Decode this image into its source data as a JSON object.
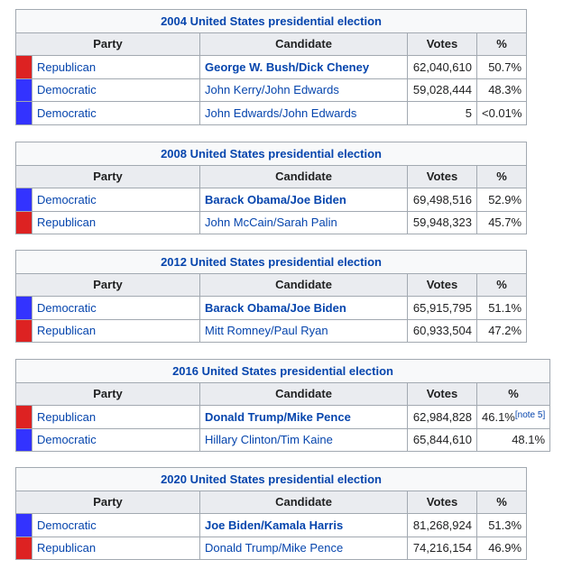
{
  "tables": [
    {
      "title": "2004 United States presidential election",
      "headers": [
        "Party",
        "Candidate",
        "Votes",
        "%"
      ],
      "rows": [
        {
          "color": "#dd2222",
          "party": "Republican",
          "candidate": "George W. Bush/Dick Cheney",
          "bold": true,
          "votes": "62,040,610",
          "percent": "50.7%"
        },
        {
          "color": "#3333ff",
          "party": "Democratic",
          "candidate": "John Kerry/John Edwards",
          "bold": false,
          "votes": "59,028,444",
          "percent": "48.3%"
        },
        {
          "color": "#3333ff",
          "party": "Democratic",
          "candidate": "John Edwards/John Edwards",
          "bold": false,
          "votes": "5",
          "percent": "<0.01%"
        }
      ]
    },
    {
      "title": "2008 United States presidential election",
      "headers": [
        "Party",
        "Candidate",
        "Votes",
        "%"
      ],
      "rows": [
        {
          "color": "#3333ff",
          "party": "Democratic",
          "candidate": "Barack Obama/Joe Biden",
          "bold": true,
          "votes": "69,498,516",
          "percent": "52.9%"
        },
        {
          "color": "#dd2222",
          "party": "Republican",
          "candidate": "John McCain/Sarah Palin",
          "bold": false,
          "votes": "59,948,323",
          "percent": "45.7%"
        }
      ]
    },
    {
      "title": "2012 United States presidential election",
      "headers": [
        "Party",
        "Candidate",
        "Votes",
        "%"
      ],
      "rows": [
        {
          "color": "#3333ff",
          "party": "Democratic",
          "candidate": "Barack Obama/Joe Biden",
          "bold": true,
          "votes": "65,915,795",
          "percent": "51.1%"
        },
        {
          "color": "#dd2222",
          "party": "Republican",
          "candidate": "Mitt Romney/Paul Ryan",
          "bold": false,
          "votes": "60,933,504",
          "percent": "47.2%"
        }
      ]
    },
    {
      "title": "2016 United States presidential election",
      "headers": [
        "Party",
        "Candidate",
        "Votes",
        "%"
      ],
      "rows": [
        {
          "color": "#dd2222",
          "party": "Republican",
          "candidate": "Donald Trump/Mike Pence",
          "bold": true,
          "votes": "62,984,828",
          "percent": "46.1%",
          "note": "[note 5]"
        },
        {
          "color": "#3333ff",
          "party": "Democratic",
          "candidate": "Hillary Clinton/Tim Kaine",
          "bold": false,
          "votes": "65,844,610",
          "percent": "48.1%"
        }
      ]
    },
    {
      "title": "2020 United States presidential election",
      "headers": [
        "Party",
        "Candidate",
        "Votes",
        "%"
      ],
      "rows": [
        {
          "color": "#3333ff",
          "party": "Democratic",
          "candidate": "Joe Biden/Kamala Harris",
          "bold": true,
          "votes": "81,268,924",
          "percent": "51.3%"
        },
        {
          "color": "#dd2222",
          "party": "Republican",
          "candidate": "Donald Trump/Mike Pence",
          "bold": false,
          "votes": "74,216,154",
          "percent": "46.9%"
        }
      ]
    }
  ]
}
